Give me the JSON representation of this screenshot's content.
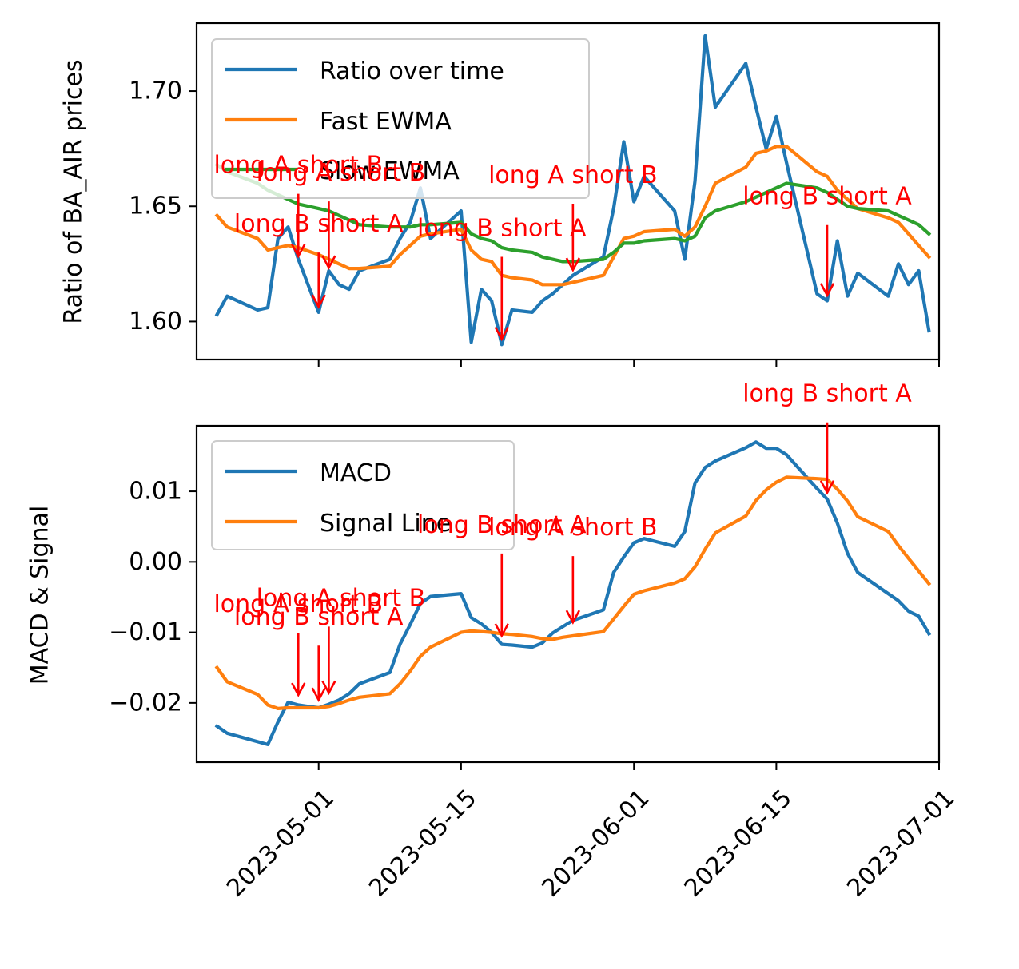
{
  "chart_data": [
    {
      "type": "line",
      "ylabel": "Ratio of BA_AIR prices",
      "xlabel": "",
      "xlim": [
        "2023-04-19",
        "2023-07-01"
      ],
      "ylim": [
        1.5835,
        1.7295
      ],
      "yticks": [
        1.6,
        1.65,
        1.7
      ],
      "ytick_labels": [
        "1.60",
        "1.65",
        "1.70"
      ],
      "grid": false,
      "legend_position": "upper-left",
      "series": [
        {
          "name": "Ratio over time",
          "color": "#1f77b4",
          "x": [
            "2023-04-21",
            "2023-04-22",
            "2023-04-25",
            "2023-04-26",
            "2023-04-27",
            "2023-04-28",
            "2023-04-29",
            "2023-05-01",
            "2023-05-02",
            "2023-05-03",
            "2023-05-04",
            "2023-05-05",
            "2023-05-08",
            "2023-05-09",
            "2023-05-10",
            "2023-05-11",
            "2023-05-12",
            "2023-05-15",
            "2023-05-16",
            "2023-05-17",
            "2023-05-18",
            "2023-05-19",
            "2023-05-20",
            "2023-05-22",
            "2023-05-23",
            "2023-05-24",
            "2023-05-25",
            "2023-05-26",
            "2023-05-29",
            "2023-05-30",
            "2023-05-31",
            "2023-06-01",
            "2023-06-02",
            "2023-06-05",
            "2023-06-06",
            "2023-06-07",
            "2023-06-08",
            "2023-06-09",
            "2023-06-12",
            "2023-06-13",
            "2023-06-14",
            "2023-06-15",
            "2023-06-16",
            "2023-06-19",
            "2023-06-20",
            "2023-06-21",
            "2023-06-22",
            "2023-06-23",
            "2023-06-26",
            "2023-06-27",
            "2023-06-28",
            "2023-06-29",
            "2023-06-30"
          ],
          "values": [
            1.603,
            1.611,
            1.605,
            1.606,
            1.636,
            1.641,
            1.627,
            1.604,
            1.622,
            1.616,
            1.614,
            1.622,
            1.627,
            1.636,
            1.643,
            1.658,
            1.636,
            1.648,
            1.591,
            1.614,
            1.609,
            1.59,
            1.605,
            1.604,
            1.609,
            1.612,
            1.616,
            1.62,
            1.628,
            1.649,
            1.678,
            1.652,
            1.663,
            1.648,
            1.627,
            1.661,
            1.724,
            1.693,
            1.712,
            1.693,
            1.675,
            1.689,
            1.669,
            1.612,
            1.609,
            1.635,
            1.611,
            1.621,
            1.611,
            1.625,
            1.616,
            1.622,
            1.596
          ]
        },
        {
          "name": "Fast EWMA",
          "color": "#ff7f0e",
          "x": [
            "2023-04-21",
            "2023-04-22",
            "2023-04-25",
            "2023-04-26",
            "2023-04-27",
            "2023-04-28",
            "2023-04-29",
            "2023-05-01",
            "2023-05-02",
            "2023-05-03",
            "2023-05-04",
            "2023-05-05",
            "2023-05-08",
            "2023-05-09",
            "2023-05-10",
            "2023-05-11",
            "2023-05-12",
            "2023-05-15",
            "2023-05-16",
            "2023-05-17",
            "2023-05-18",
            "2023-05-19",
            "2023-05-20",
            "2023-05-22",
            "2023-05-23",
            "2023-05-24",
            "2023-05-25",
            "2023-05-26",
            "2023-05-29",
            "2023-05-30",
            "2023-05-31",
            "2023-06-01",
            "2023-06-02",
            "2023-06-05",
            "2023-06-06",
            "2023-06-07",
            "2023-06-08",
            "2023-06-09",
            "2023-06-12",
            "2023-06-13",
            "2023-06-14",
            "2023-06-15",
            "2023-06-16",
            "2023-06-19",
            "2023-06-20",
            "2023-06-21",
            "2023-06-22",
            "2023-06-23",
            "2023-06-26",
            "2023-06-27",
            "2023-06-28",
            "2023-06-29",
            "2023-06-30"
          ],
          "values": [
            1.646,
            1.641,
            1.636,
            1.631,
            1.632,
            1.633,
            1.632,
            1.629,
            1.627,
            1.625,
            1.623,
            1.623,
            1.624,
            1.629,
            1.633,
            1.637,
            1.638,
            1.64,
            1.631,
            1.627,
            1.626,
            1.62,
            1.619,
            1.618,
            1.616,
            1.616,
            1.616,
            1.617,
            1.62,
            1.628,
            1.636,
            1.637,
            1.639,
            1.64,
            1.637,
            1.641,
            1.65,
            1.66,
            1.667,
            1.673,
            1.674,
            1.676,
            1.676,
            1.665,
            1.663,
            1.657,
            1.653,
            1.649,
            1.645,
            1.643,
            1.638,
            1.633,
            1.628
          ]
        },
        {
          "name": "Slow EWMA",
          "color": "#2ca02c",
          "x": [
            "2023-04-21",
            "2023-04-22",
            "2023-04-25",
            "2023-04-26",
            "2023-04-27",
            "2023-04-28",
            "2023-04-29",
            "2023-05-01",
            "2023-05-02",
            "2023-05-03",
            "2023-05-04",
            "2023-05-05",
            "2023-05-08",
            "2023-05-09",
            "2023-05-10",
            "2023-05-11",
            "2023-05-12",
            "2023-05-15",
            "2023-05-16",
            "2023-05-17",
            "2023-05-18",
            "2023-05-19",
            "2023-05-20",
            "2023-05-22",
            "2023-05-23",
            "2023-05-24",
            "2023-05-25",
            "2023-05-26",
            "2023-05-29",
            "2023-05-30",
            "2023-05-31",
            "2023-06-01",
            "2023-06-02",
            "2023-06-05",
            "2023-06-06",
            "2023-06-07",
            "2023-06-08",
            "2023-06-09",
            "2023-06-12",
            "2023-06-13",
            "2023-06-14",
            "2023-06-15",
            "2023-06-16",
            "2023-06-19",
            "2023-06-20",
            "2023-06-21",
            "2023-06-22",
            "2023-06-23",
            "2023-06-26",
            "2023-06-27",
            "2023-06-28",
            "2023-06-29",
            "2023-06-30"
          ],
          "values": [
            1.668,
            1.665,
            1.66,
            1.657,
            1.655,
            1.653,
            1.651,
            1.649,
            1.648,
            1.646,
            1.644,
            1.642,
            1.641,
            1.641,
            1.641,
            1.642,
            1.642,
            1.643,
            1.638,
            1.636,
            1.635,
            1.632,
            1.631,
            1.63,
            1.628,
            1.627,
            1.626,
            1.626,
            1.627,
            1.63,
            1.634,
            1.634,
            1.635,
            1.636,
            1.635,
            1.637,
            1.645,
            1.648,
            1.652,
            1.654,
            1.656,
            1.658,
            1.66,
            1.658,
            1.656,
            1.653,
            1.65,
            1.649,
            1.648,
            1.646,
            1.644,
            1.642,
            1.638
          ]
        }
      ],
      "annotations": [
        {
          "text": "long A short B",
          "x": "2023-04-29",
          "y": 1.628
        },
        {
          "text": "long B short A",
          "x": "2023-05-01",
          "y": 1.606
        },
        {
          "text": "long A short B",
          "x": "2023-05-02",
          "y": 1.623
        },
        {
          "text": "long B short A",
          "x": "2023-05-19",
          "y": 1.592
        },
        {
          "text": "long A short B",
          "x": "2023-05-26",
          "y": 1.622
        },
        {
          "text": "long B short A",
          "x": "2023-06-20",
          "y": 1.611
        }
      ]
    },
    {
      "type": "line",
      "ylabel": "MACD & Signal",
      "xlabel": "",
      "xlim": [
        "2023-04-19",
        "2023-07-01"
      ],
      "ylim": [
        -0.0284,
        0.0193
      ],
      "yticks": [
        -0.02,
        -0.01,
        0.0,
        0.01
      ],
      "ytick_labels": [
        "−0.02",
        "−0.01",
        "0.00",
        "0.01"
      ],
      "xticks": [
        "2023-05-01",
        "2023-05-15",
        "2023-06-01",
        "2023-06-15",
        "2023-07-01"
      ],
      "xtick_labels": [
        "2023-05-01",
        "2023-05-15",
        "2023-06-01",
        "2023-06-15",
        "2023-07-01"
      ],
      "grid": false,
      "legend_position": "upper-left",
      "series": [
        {
          "name": "MACD",
          "color": "#1f77b4",
          "x": [
            "2023-04-21",
            "2023-04-22",
            "2023-04-25",
            "2023-04-26",
            "2023-04-27",
            "2023-04-28",
            "2023-04-29",
            "2023-05-01",
            "2023-05-02",
            "2023-05-03",
            "2023-05-04",
            "2023-05-05",
            "2023-05-08",
            "2023-05-09",
            "2023-05-10",
            "2023-05-11",
            "2023-05-12",
            "2023-05-15",
            "2023-05-16",
            "2023-05-17",
            "2023-05-18",
            "2023-05-19",
            "2023-05-20",
            "2023-05-22",
            "2023-05-23",
            "2023-05-24",
            "2023-05-25",
            "2023-05-26",
            "2023-05-29",
            "2023-05-30",
            "2023-05-31",
            "2023-06-01",
            "2023-06-02",
            "2023-06-05",
            "2023-06-06",
            "2023-06-07",
            "2023-06-08",
            "2023-06-09",
            "2023-06-12",
            "2023-06-13",
            "2023-06-14",
            "2023-06-15",
            "2023-06-16",
            "2023-06-19",
            "2023-06-20",
            "2023-06-21",
            "2023-06-22",
            "2023-06-23",
            "2023-06-26",
            "2023-06-27",
            "2023-06-28",
            "2023-06-29",
            "2023-06-30"
          ],
          "values": [
            -0.0233,
            -0.0243,
            -0.0255,
            -0.0259,
            -0.0227,
            -0.0199,
            -0.0203,
            -0.0207,
            -0.0202,
            -0.0196,
            -0.0187,
            -0.0173,
            -0.0157,
            -0.0117,
            -0.0089,
            -0.0059,
            -0.0049,
            -0.0045,
            -0.0079,
            -0.0088,
            -0.01,
            -0.0117,
            -0.0118,
            -0.0121,
            -0.0115,
            -0.0101,
            -0.0092,
            -0.0083,
            -0.0068,
            -0.0015,
            0.0007,
            0.0027,
            0.0033,
            0.0022,
            0.0043,
            0.0112,
            0.0134,
            0.0143,
            0.0162,
            0.017,
            0.0161,
            0.0161,
            0.0152,
            0.0104,
            0.0089,
            0.0055,
            0.0012,
            -0.0015,
            -0.0045,
            -0.0055,
            -0.007,
            -0.0077,
            -0.0102
          ]
        },
        {
          "name": "Signal Line",
          "color": "#ff7f0e",
          "x": [
            "2023-04-21",
            "2023-04-22",
            "2023-04-25",
            "2023-04-26",
            "2023-04-27",
            "2023-04-28",
            "2023-04-29",
            "2023-05-01",
            "2023-05-02",
            "2023-05-03",
            "2023-05-04",
            "2023-05-05",
            "2023-05-08",
            "2023-05-09",
            "2023-05-10",
            "2023-05-11",
            "2023-05-12",
            "2023-05-15",
            "2023-05-16",
            "2023-05-17",
            "2023-05-18",
            "2023-05-19",
            "2023-05-20",
            "2023-05-22",
            "2023-05-23",
            "2023-05-24",
            "2023-05-25",
            "2023-05-26",
            "2023-05-29",
            "2023-05-30",
            "2023-05-31",
            "2023-06-01",
            "2023-06-02",
            "2023-06-05",
            "2023-06-06",
            "2023-06-07",
            "2023-06-08",
            "2023-06-09",
            "2023-06-12",
            "2023-06-13",
            "2023-06-14",
            "2023-06-15",
            "2023-06-16",
            "2023-06-19",
            "2023-06-20",
            "2023-06-21",
            "2023-06-22",
            "2023-06-23",
            "2023-06-26",
            "2023-06-27",
            "2023-06-28",
            "2023-06-29",
            "2023-06-30"
          ],
          "values": [
            -0.015,
            -0.017,
            -0.0188,
            -0.0203,
            -0.0208,
            -0.0207,
            -0.0207,
            -0.0207,
            -0.0205,
            -0.0201,
            -0.0196,
            -0.0192,
            -0.0187,
            -0.0173,
            -0.0155,
            -0.0134,
            -0.0121,
            -0.01,
            -0.0098,
            -0.0099,
            -0.01,
            -0.0102,
            -0.0103,
            -0.0106,
            -0.0109,
            -0.011,
            -0.0107,
            -0.0105,
            -0.0099,
            -0.0081,
            -0.0063,
            -0.0046,
            -0.0041,
            -0.003,
            -0.0024,
            -0.0007,
            0.0018,
            0.0041,
            0.0065,
            0.0087,
            0.0102,
            0.0113,
            0.012,
            0.0118,
            0.0117,
            0.0103,
            0.0086,
            0.0064,
            0.0043,
            0.0023,
            0.0005,
            -0.0013,
            -0.0031
          ]
        }
      ],
      "annotations": [
        {
          "text": "long A short B",
          "x": "2023-04-29",
          "y": -0.019
        },
        {
          "text": "long B short A",
          "x": "2023-05-01",
          "y": -0.0197
        },
        {
          "text": "long A short B",
          "x": "2023-05-02",
          "y": -0.0187
        },
        {
          "text": "long B short A",
          "x": "2023-05-19",
          "y": -0.0106
        },
        {
          "text": "long A short B",
          "x": "2023-05-26",
          "y": -0.0087
        },
        {
          "text": "long B short A",
          "x": "2023-06-20",
          "y": 0.0097
        }
      ]
    }
  ]
}
